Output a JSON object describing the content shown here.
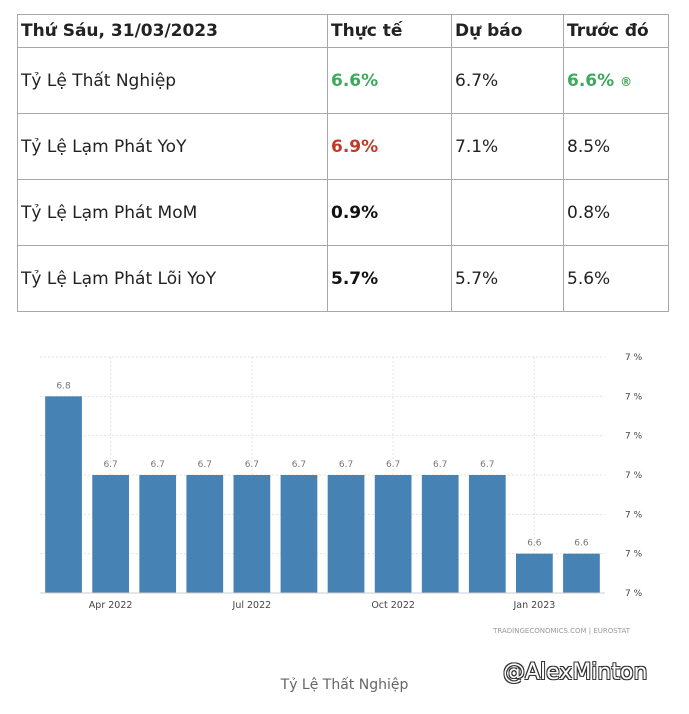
{
  "table": {
    "headers": [
      "Thứ Sáu, 31/03/2023",
      "Thực tế",
      "Dự báo",
      "Trước đó"
    ],
    "rows": [
      {
        "name": "Tỷ Lệ Thất Nghiệp",
        "actual": "6.6%",
        "actual_color": "#3caa5a",
        "forecast": "6.7%",
        "previous": "6.6%",
        "previous_color": "#3caa5a",
        "previous_mark": "®"
      },
      {
        "name": "Tỷ Lệ Lạm Phát YoY",
        "actual": "6.9%",
        "actual_color": "#c0392b",
        "forecast": "7.1%",
        "previous": "8.5%",
        "previous_color": "#222222",
        "previous_mark": ""
      },
      {
        "name": "Tỷ Lệ Lạm Phát MoM",
        "actual": "0.9%",
        "actual_color": "#111111",
        "forecast": "",
        "previous": "0.8%",
        "previous_color": "#222222",
        "previous_mark": ""
      },
      {
        "name": "Tỷ Lệ Lạm Phát Lõi YoY",
        "actual": "5.7%",
        "actual_color": "#111111",
        "forecast": "5.7%",
        "previous": "5.6%",
        "previous_color": "#222222",
        "previous_mark": ""
      }
    ]
  },
  "chart_data": {
    "type": "bar",
    "categories": [
      "",
      "",
      "",
      "",
      "",
      "",
      "",
      "",
      "",
      "",
      "",
      ""
    ],
    "values": [
      6.8,
      6.7,
      6.7,
      6.7,
      6.7,
      6.7,
      6.7,
      6.7,
      6.7,
      6.7,
      6.6,
      6.6
    ],
    "data_labels": [
      "6.8",
      "6.7",
      "6.7",
      "6.7",
      "6.7",
      "6.7",
      "6.7",
      "6.7",
      "6.7",
      "6.7",
      "6.6",
      "6.6"
    ],
    "x_tick_labels": [
      {
        "index": 1,
        "label": "Apr 2022"
      },
      {
        "index": 4,
        "label": "Jul 2022"
      },
      {
        "index": 7,
        "label": "Oct 2022"
      },
      {
        "index": 10,
        "label": "Jan 2023"
      }
    ],
    "y_ticks": [
      6.85,
      6.8,
      6.75,
      6.7,
      6.65,
      6.6,
      6.55
    ],
    "y_tick_labels": [
      "7 %",
      "7 %",
      "7 %",
      "7 %",
      "7 %",
      "7 %",
      "7 %"
    ],
    "ylim": [
      6.55,
      6.85
    ],
    "grid": true,
    "bar_color": "#4682b4",
    "source": "TRADINGECONOMICS.COM | EUROSTAT"
  },
  "caption": "Tỷ Lệ Thất Nghiệp",
  "watermark": "@AlexMinton"
}
